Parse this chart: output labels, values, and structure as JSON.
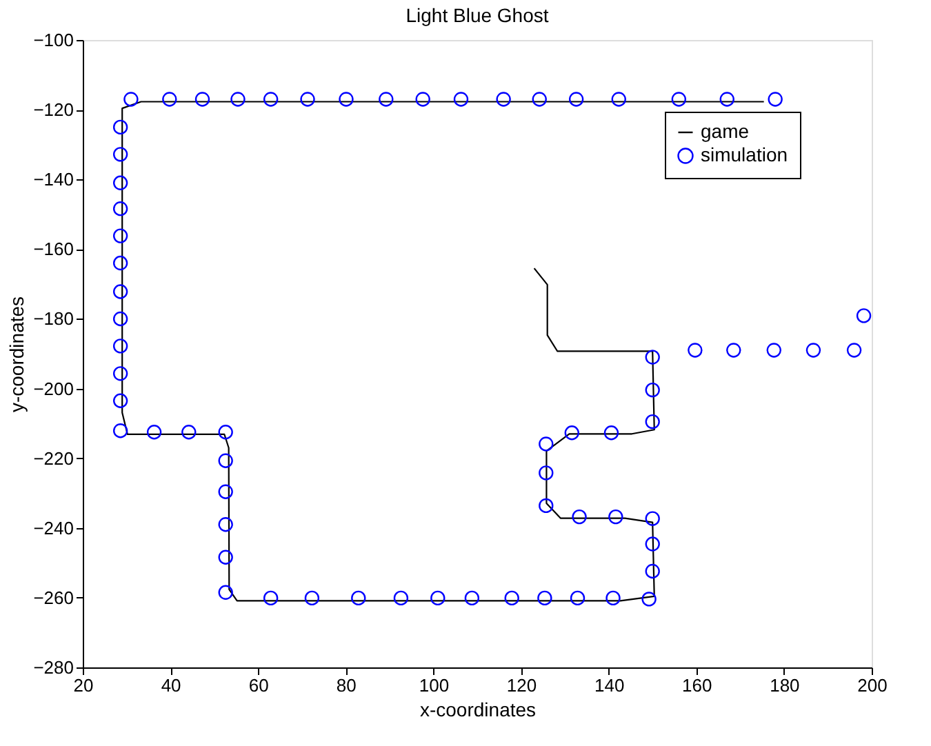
{
  "chart_data": {
    "type": "line",
    "title": "Light Blue Ghost",
    "xlabel": "x-coordinates",
    "ylabel": "y-coordinates",
    "xlim": [
      20,
      200
    ],
    "xticks": [
      20,
      40,
      60,
      80,
      100,
      120,
      140,
      160,
      180,
      200
    ],
    "ylim": [
      -280,
      -100
    ],
    "yticks": [
      -280,
      -260,
      -240,
      -220,
      -200,
      -180,
      -160,
      -140,
      -120,
      -100
    ],
    "grid": false,
    "legend": "top right",
    "series": [
      {
        "name": "game",
        "type": "line",
        "color": "#000000",
        "line_style": "solid",
        "x": [
          175.4,
          33.3,
          29,
          29,
          30.2,
          52.3,
          53.3,
          53.4,
          55.2,
          142.7,
          150.4,
          150,
          143.7,
          129,
          125.8,
          125.8,
          131,
          145.3,
          150.4,
          150,
          128.3,
          126,
          126,
          123
        ],
        "values": [
          -117.7,
          -117.7,
          -119.6,
          -206.9,
          -213.1,
          -213.1,
          -217,
          -257.6,
          -260.9,
          -260.9,
          -259.6,
          -238.4,
          -237.2,
          -237.2,
          -232.9,
          -217.9,
          -213,
          -213,
          -211.8,
          -189.3,
          -189.3,
          -184.7,
          -170.2,
          -165.5
        ]
      },
      {
        "name": "simulation",
        "type": "scatter",
        "color": "#0000ff",
        "marker": "circle",
        "x": [
          31,
          39.8,
          47.3,
          55.4,
          62.9,
          71.3,
          80.1,
          89.2,
          97.6,
          106.3,
          116,
          124.2,
          132.6,
          142.3,
          156,
          167,
          178,
          28.6,
          28.6,
          28.6,
          28.6,
          28.6,
          28.6,
          28.6,
          28.6,
          28.6,
          28.6,
          28.6,
          28.6,
          36.3,
          44.2,
          52.6,
          52.6,
          52.6,
          52.6,
          52.6,
          52.6,
          62.9,
          72.3,
          82.9,
          92.6,
          101,
          108.8,
          117.9,
          125.4,
          132.9,
          141,
          149.2,
          150,
          150,
          150,
          141.6,
          133.3,
          125.7,
          125.7,
          125.7,
          131.6,
          140.6,
          150,
          150,
          150,
          159.7,
          168.5,
          177.7,
          186.7,
          196,
          198.2
        ],
        "values": [
          -117,
          -117,
          -117,
          -117,
          -117,
          -117,
          -117,
          -117,
          -117,
          -117,
          -117,
          -117,
          -117,
          -117,
          -117,
          -117,
          -117,
          -125,
          -132.8,
          -141,
          -148.4,
          -156.2,
          -164,
          -172.2,
          -180,
          -187.8,
          -195.7,
          -203.5,
          -212.1,
          -212.5,
          -212.5,
          -212.5,
          -220.7,
          -229.6,
          -239,
          -248.4,
          -258.5,
          -260.1,
          -260.1,
          -260.1,
          -260.1,
          -260.1,
          -260.1,
          -260.1,
          -260.1,
          -260.1,
          -260.1,
          -260.4,
          -252.4,
          -244.6,
          -237.3,
          -236.8,
          -236.8,
          -233.6,
          -224.2,
          -215.9,
          -212.7,
          -212.7,
          -209.5,
          -200.4,
          -191,
          -189,
          -189,
          -189,
          -189,
          -189,
          -179.1
        ]
      }
    ]
  }
}
